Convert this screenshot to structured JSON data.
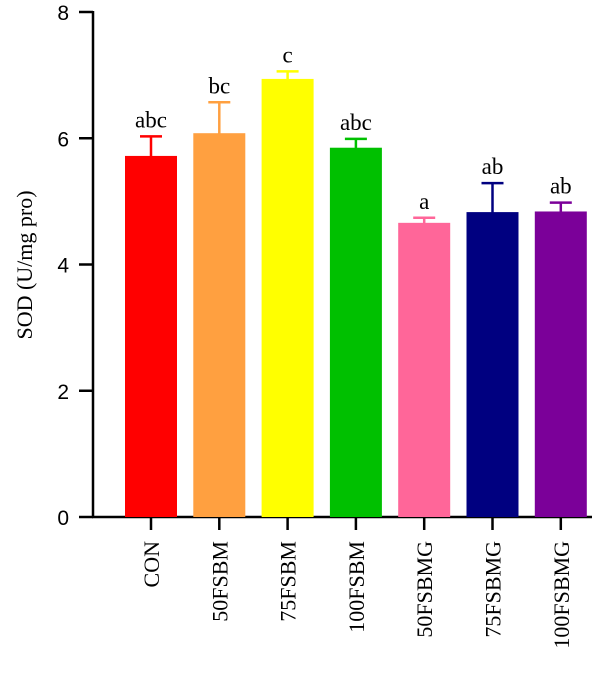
{
  "chart_data": {
    "type": "bar",
    "title": "",
    "xlabel": "",
    "ylabel": "SOD (U/mg pro)",
    "ylim": [
      0,
      8
    ],
    "yticks": [
      0,
      2,
      4,
      6,
      8
    ],
    "grid": false,
    "legend": "none",
    "categories": [
      "CON",
      "50FSBM",
      "75FSBM",
      "100FSBM",
      "50FSBMG",
      "75FSBMG",
      "100FSBMG"
    ],
    "values": [
      5.72,
      6.08,
      6.94,
      5.85,
      4.66,
      4.83,
      4.84
    ],
    "errors": [
      0.31,
      0.49,
      0.12,
      0.14,
      0.08,
      0.46,
      0.14
    ],
    "significance": [
      "abc",
      "bc",
      "c",
      "abc",
      "a",
      "ab",
      "ab"
    ],
    "colors": [
      "#ff0000",
      "#ffa040",
      "#ffff00",
      "#00c000",
      "#ff6699",
      "#000080",
      "#7b0099"
    ]
  }
}
